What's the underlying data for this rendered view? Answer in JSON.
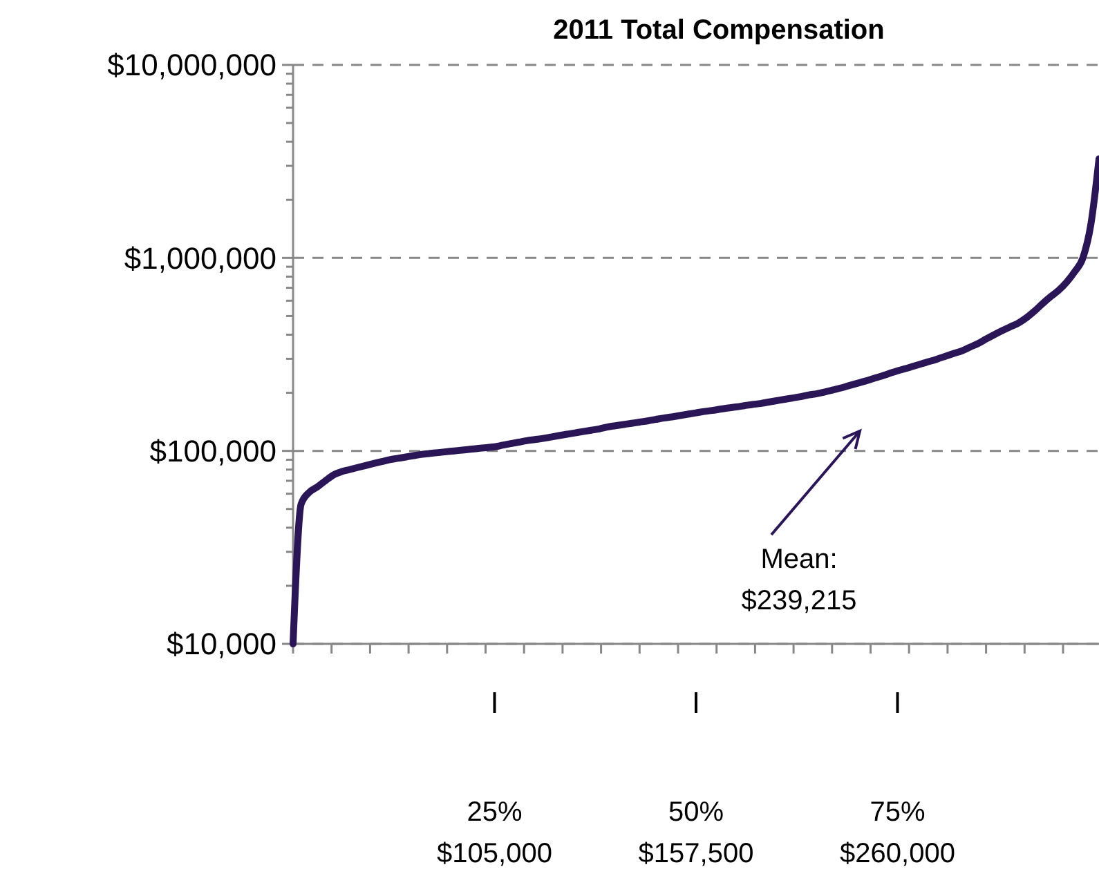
{
  "chart_data": {
    "type": "line",
    "title": "2011 Total Compensation",
    "log": "y",
    "grid": "y",
    "marker": "none",
    "line_style": "solid",
    "ylim": [
      10000,
      10000000
    ],
    "yticks": [
      {
        "value": 10000,
        "label": "$10,000"
      },
      {
        "value": 20000,
        "label": null
      },
      {
        "value": 30000,
        "label": null
      },
      {
        "value": 40000,
        "label": null
      },
      {
        "value": 50000,
        "label": null
      },
      {
        "value": 60000,
        "label": null
      },
      {
        "value": 70000,
        "label": null
      },
      {
        "value": 80000,
        "label": null
      },
      {
        "value": 90000,
        "label": null
      },
      {
        "value": 100000,
        "label": "$100,000"
      },
      {
        "value": 200000,
        "label": null
      },
      {
        "value": 300000,
        "label": null
      },
      {
        "value": 400000,
        "label": null
      },
      {
        "value": 500000,
        "label": null
      },
      {
        "value": 600000,
        "label": null
      },
      {
        "value": 700000,
        "label": null
      },
      {
        "value": 800000,
        "label": null
      },
      {
        "value": 900000,
        "label": null
      },
      {
        "value": 1000000,
        "label": "$1,000,000"
      },
      {
        "value": 2000000,
        "label": null
      },
      {
        "value": 3000000,
        "label": null
      },
      {
        "value": 4000000,
        "label": null
      },
      {
        "value": 5000000,
        "label": null
      },
      {
        "value": 6000000,
        "label": null
      },
      {
        "value": 7000000,
        "label": null
      },
      {
        "value": 8000000,
        "label": null
      },
      {
        "value": 9000000,
        "label": null
      },
      {
        "value": 10000000,
        "label": "$10,000,000"
      }
    ],
    "categories": [
      null,
      null,
      null,
      null,
      null,
      null,
      null,
      null,
      null,
      null,
      null,
      null,
      null,
      null,
      null,
      null,
      null,
      null,
      null,
      null,
      null,
      null,
      null,
      null,
      null,
      "25%\n$105,000",
      null,
      null,
      null,
      null,
      null,
      null,
      null,
      null,
      null,
      null,
      null,
      null,
      null,
      null,
      null,
      null,
      null,
      null,
      null,
      null,
      null,
      null,
      null,
      null,
      "50%\n$157,500",
      null,
      null,
      null,
      null,
      null,
      null,
      null,
      null,
      null,
      null,
      null,
      null,
      null,
      null,
      null,
      null,
      null,
      null,
      null,
      null,
      null,
      null,
      null,
      null,
      "75%\n$260,000",
      null,
      null,
      null,
      null,
      null,
      null,
      null,
      null,
      null,
      null,
      null,
      null,
      null,
      null,
      null,
      null,
      null,
      null,
      null,
      null,
      null,
      null,
      null,
      null,
      null
    ],
    "annotations": [
      "Mean:\n$239,215"
    ],
    "series": [
      {
        "color": "#2a1657",
        "values": [
          10000,
          53000,
          61000,
          65000,
          70000,
          75000,
          78000,
          80000,
          82000,
          84000,
          86000,
          88000,
          90000,
          91500,
          93000,
          94500,
          96000,
          97000,
          98000,
          99000,
          100000,
          101000,
          102000,
          103000,
          104000,
          105000,
          107000,
          109000,
          111000,
          113000,
          114500,
          116000,
          118000,
          120000,
          122000,
          124000,
          126000,
          128000,
          130000,
          133000,
          135000,
          137000,
          139000,
          141000,
          143000,
          145500,
          148000,
          150000,
          152500,
          155000,
          157500,
          160000,
          162000,
          164500,
          167000,
          169000,
          171500,
          174000,
          176000,
          179000,
          182000,
          185000,
          188000,
          191000,
          195000,
          198000,
          202000,
          207000,
          212000,
          218000,
          224000,
          230000,
          237000,
          244000,
          252000,
          260000,
          267000,
          275000,
          283000,
          291000,
          300000,
          310000,
          320000,
          330000,
          345000,
          360000,
          380000,
          400000,
          420000,
          440000,
          460000,
          490000,
          530000,
          580000,
          630000,
          680000,
          750000,
          850000,
          1000000,
          1500000,
          3260000
        ]
      }
    ]
  }
}
